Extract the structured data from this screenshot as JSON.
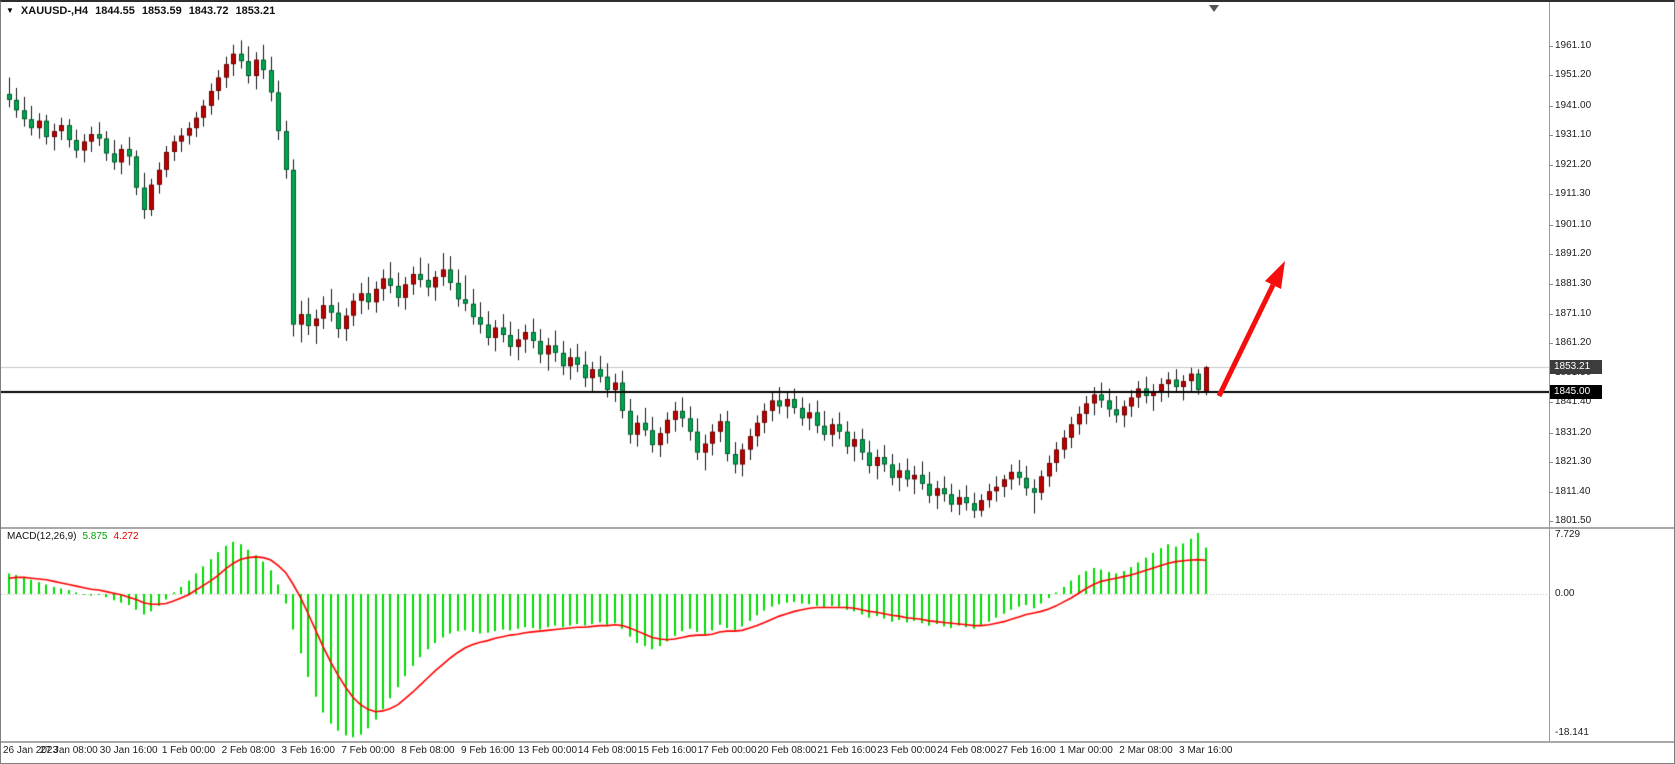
{
  "title": {
    "symbol": "XAUUSD-,H4",
    "open": "1844.55",
    "high": "1853.59",
    "low": "1843.72",
    "close": "1853.21"
  },
  "markers": {
    "bid_label": "1853.21",
    "hline_label": "1845.00"
  },
  "macd": {
    "label": "MACD(12,26,9)",
    "scale_zero_label": "0.00"
  },
  "chart_data": {
    "type": "candlestick",
    "symbol": "XAUUSD",
    "timeframe": "H4",
    "bars_per_x_label": 8,
    "x_labels": [
      "26 Jan 2023",
      "27 Jan 08:00",
      "30 Jan 16:00",
      "1 Feb 00:00",
      "2 Feb 08:00",
      "3 Feb 16:00",
      "7 Feb 00:00",
      "8 Feb 08:00",
      "9 Feb 16:00",
      "13 Feb 00:00",
      "14 Feb 08:00",
      "15 Feb 16:00",
      "17 Feb 00:00",
      "20 Feb 08:00",
      "21 Feb 16:00",
      "23 Feb 00:00",
      "24 Feb 08:00",
      "27 Feb 16:00",
      "1 Mar 00:00",
      "2 Mar 08:00",
      "3 Mar 16:00"
    ],
    "y_axis_labels": [
      "1961.10",
      "1951.20",
      "1941.00",
      "1931.10",
      "1921.20",
      "1911.30",
      "1901.10",
      "1891.20",
      "1881.30",
      "1871.10",
      "1861.20",
      "1851.30",
      "1841.40",
      "1831.20",
      "1821.30",
      "1811.40",
      "1801.50"
    ],
    "horizontal_line": 1845.0,
    "bid_price": 1853.21,
    "arrow_annotation": "thick red arrow pointing up-right from the last candle toward ~1890",
    "ohlc": [
      [
        1945.0,
        1950.5,
        1940.5,
        1943.0
      ],
      [
        1943.0,
        1947.0,
        1937.0,
        1939.5
      ],
      [
        1939.5,
        1944.0,
        1934.0,
        1936.5
      ],
      [
        1936.5,
        1941.0,
        1931.0,
        1933.5
      ],
      [
        1933.5,
        1938.5,
        1930.0,
        1936.0
      ],
      [
        1936.0,
        1938.0,
        1928.0,
        1930.5
      ],
      [
        1930.5,
        1935.0,
        1926.0,
        1932.5
      ],
      [
        1932.5,
        1937.0,
        1929.5,
        1934.5
      ],
      [
        1934.5,
        1936.5,
        1927.0,
        1929.5
      ],
      [
        1929.5,
        1933.0,
        1923.5,
        1926.0
      ],
      [
        1926.0,
        1931.5,
        1922.0,
        1929.0
      ],
      [
        1929.0,
        1934.0,
        1925.5,
        1931.5
      ],
      [
        1931.5,
        1935.5,
        1927.5,
        1930.0
      ],
      [
        1930.0,
        1932.5,
        1922.5,
        1925.0
      ],
      [
        1925.0,
        1929.5,
        1919.5,
        1922.0
      ],
      [
        1922.0,
        1928.0,
        1918.0,
        1926.5
      ],
      [
        1926.5,
        1930.5,
        1921.0,
        1924.0
      ],
      [
        1924.0,
        1926.0,
        1911.0,
        1913.5
      ],
      [
        1913.5,
        1918.5,
        1903.0,
        1906.0
      ],
      [
        1906.0,
        1916.5,
        1904.0,
        1914.5
      ],
      [
        1914.5,
        1922.0,
        1911.5,
        1919.5
      ],
      [
        1919.5,
        1927.5,
        1917.0,
        1925.5
      ],
      [
        1925.5,
        1931.0,
        1922.5,
        1929.0
      ],
      [
        1929.0,
        1933.5,
        1925.5,
        1931.0
      ],
      [
        1931.0,
        1935.5,
        1928.0,
        1933.5
      ],
      [
        1933.5,
        1939.0,
        1930.5,
        1937.0
      ],
      [
        1937.0,
        1943.0,
        1934.0,
        1941.0
      ],
      [
        1941.0,
        1948.5,
        1938.0,
        1946.0
      ],
      [
        1946.0,
        1953.0,
        1943.0,
        1950.5
      ],
      [
        1950.5,
        1957.5,
        1947.0,
        1955.0
      ],
      [
        1955.0,
        1961.5,
        1951.0,
        1958.5
      ],
      [
        1958.5,
        1963.0,
        1953.5,
        1956.0
      ],
      [
        1956.0,
        1961.0,
        1948.5,
        1951.0
      ],
      [
        1951.0,
        1959.0,
        1946.5,
        1956.5
      ],
      [
        1956.5,
        1961.5,
        1950.0,
        1953.0
      ],
      [
        1953.0,
        1957.5,
        1942.5,
        1945.5
      ],
      [
        1945.5,
        1949.5,
        1929.5,
        1932.5
      ],
      [
        1932.5,
        1936.0,
        1916.5,
        1919.5
      ],
      [
        1919.5,
        1923.0,
        1863.5,
        1867.5
      ],
      [
        1867.5,
        1875.5,
        1861.5,
        1871.0
      ],
      [
        1871.0,
        1876.5,
        1864.0,
        1867.0
      ],
      [
        1867.0,
        1872.5,
        1861.0,
        1869.5
      ],
      [
        1869.5,
        1877.0,
        1866.0,
        1874.0
      ],
      [
        1874.0,
        1879.5,
        1868.5,
        1871.5
      ],
      [
        1871.5,
        1875.0,
        1863.0,
        1866.0
      ],
      [
        1866.0,
        1873.0,
        1862.0,
        1870.5
      ],
      [
        1870.5,
        1878.0,
        1867.0,
        1875.5
      ],
      [
        1875.5,
        1881.5,
        1871.0,
        1878.0
      ],
      [
        1878.0,
        1883.5,
        1872.5,
        1875.0
      ],
      [
        1875.0,
        1882.0,
        1871.5,
        1879.5
      ],
      [
        1879.5,
        1886.0,
        1875.5,
        1883.0
      ],
      [
        1883.0,
        1888.5,
        1878.0,
        1880.5
      ],
      [
        1880.5,
        1885.0,
        1873.5,
        1876.5
      ],
      [
        1876.5,
        1883.5,
        1872.5,
        1881.0
      ],
      [
        1881.0,
        1887.0,
        1877.5,
        1884.5
      ],
      [
        1884.5,
        1890.0,
        1880.0,
        1882.5
      ],
      [
        1882.5,
        1888.0,
        1877.0,
        1880.0
      ],
      [
        1880.0,
        1885.5,
        1875.5,
        1883.5
      ],
      [
        1883.5,
        1891.5,
        1880.5,
        1886.0
      ],
      [
        1886.0,
        1890.5,
        1879.0,
        1881.5
      ],
      [
        1881.5,
        1886.0,
        1873.5,
        1876.0
      ],
      [
        1876.0,
        1884.0,
        1872.0,
        1874.5
      ],
      [
        1874.5,
        1879.5,
        1867.5,
        1870.0
      ],
      [
        1870.0,
        1875.0,
        1864.5,
        1867.5
      ],
      [
        1867.5,
        1872.0,
        1860.5,
        1863.0
      ],
      [
        1863.0,
        1869.0,
        1858.5,
        1866.5
      ],
      [
        1866.5,
        1871.0,
        1861.5,
        1864.0
      ],
      [
        1864.0,
        1868.5,
        1857.0,
        1860.0
      ],
      [
        1860.0,
        1866.0,
        1855.5,
        1862.5
      ],
      [
        1862.5,
        1867.5,
        1858.0,
        1865.0
      ],
      [
        1865.0,
        1869.5,
        1859.5,
        1862.0
      ],
      [
        1862.0,
        1866.0,
        1854.5,
        1857.5
      ],
      [
        1857.5,
        1863.0,
        1852.0,
        1860.5
      ],
      [
        1860.5,
        1865.5,
        1855.0,
        1858.0
      ],
      [
        1858.0,
        1862.0,
        1850.5,
        1853.5
      ],
      [
        1853.5,
        1859.5,
        1849.0,
        1856.5
      ],
      [
        1856.5,
        1861.0,
        1851.5,
        1854.0
      ],
      [
        1854.0,
        1858.5,
        1846.5,
        1849.5
      ],
      [
        1849.5,
        1855.0,
        1845.0,
        1852.5
      ],
      [
        1852.5,
        1857.0,
        1848.0,
        1850.0
      ],
      [
        1850.0,
        1854.5,
        1843.0,
        1845.5
      ],
      [
        1845.5,
        1851.0,
        1841.5,
        1848.0
      ],
      [
        1848.0,
        1852.0,
        1836.0,
        1838.5
      ],
      [
        1838.5,
        1842.5,
        1827.5,
        1830.5
      ],
      [
        1830.5,
        1837.0,
        1826.5,
        1834.5
      ],
      [
        1834.5,
        1839.5,
        1830.0,
        1832.0
      ],
      [
        1832.0,
        1836.5,
        1824.5,
        1827.0
      ],
      [
        1827.0,
        1833.0,
        1823.0,
        1831.0
      ],
      [
        1831.0,
        1838.0,
        1827.5,
        1835.5
      ],
      [
        1835.5,
        1841.5,
        1831.5,
        1838.5
      ],
      [
        1838.5,
        1843.0,
        1833.0,
        1836.0
      ],
      [
        1836.0,
        1840.0,
        1828.5,
        1831.5
      ],
      [
        1831.5,
        1836.0,
        1822.0,
        1824.5
      ],
      [
        1824.5,
        1830.5,
        1818.5,
        1827.5
      ],
      [
        1827.5,
        1834.0,
        1823.5,
        1831.5
      ],
      [
        1831.5,
        1837.5,
        1828.0,
        1835.0
      ],
      [
        1835.0,
        1838.5,
        1821.5,
        1824.0
      ],
      [
        1824.0,
        1828.0,
        1817.5,
        1820.5
      ],
      [
        1820.5,
        1827.5,
        1816.5,
        1825.5
      ],
      [
        1825.5,
        1832.5,
        1822.0,
        1830.0
      ],
      [
        1830.0,
        1837.0,
        1826.5,
        1834.5
      ],
      [
        1834.5,
        1841.0,
        1831.0,
        1838.5
      ],
      [
        1838.5,
        1844.5,
        1835.0,
        1842.0
      ],
      [
        1842.0,
        1846.5,
        1837.5,
        1840.0
      ],
      [
        1840.0,
        1845.0,
        1836.0,
        1842.5
      ],
      [
        1842.5,
        1846.0,
        1837.5,
        1839.5
      ],
      [
        1839.5,
        1843.0,
        1833.5,
        1836.0
      ],
      [
        1836.0,
        1841.0,
        1832.0,
        1838.0
      ],
      [
        1838.0,
        1842.0,
        1831.0,
        1833.5
      ],
      [
        1833.5,
        1838.5,
        1828.5,
        1830.5
      ],
      [
        1830.5,
        1836.0,
        1826.5,
        1834.0
      ],
      [
        1834.0,
        1838.0,
        1829.0,
        1831.5
      ],
      [
        1831.5,
        1835.0,
        1824.0,
        1826.5
      ],
      [
        1826.5,
        1831.5,
        1821.5,
        1829.0
      ],
      [
        1829.0,
        1832.5,
        1822.0,
        1824.5
      ],
      [
        1824.5,
        1828.5,
        1817.5,
        1820.0
      ],
      [
        1820.0,
        1825.5,
        1815.5,
        1823.0
      ],
      [
        1823.0,
        1827.0,
        1818.0,
        1820.5
      ],
      [
        1820.5,
        1824.0,
        1813.5,
        1816.0
      ],
      [
        1816.0,
        1821.0,
        1811.5,
        1818.5
      ],
      [
        1818.5,
        1822.5,
        1813.0,
        1815.5
      ],
      [
        1815.5,
        1820.0,
        1810.5,
        1817.0
      ],
      [
        1817.0,
        1821.5,
        1812.0,
        1814.0
      ],
      [
        1814.0,
        1818.0,
        1807.5,
        1810.0
      ],
      [
        1810.0,
        1815.0,
        1805.5,
        1812.5
      ],
      [
        1812.5,
        1816.5,
        1808.0,
        1810.5
      ],
      [
        1810.5,
        1814.0,
        1804.5,
        1807.0
      ],
      [
        1807.0,
        1812.0,
        1803.5,
        1809.5
      ],
      [
        1809.5,
        1813.5,
        1805.0,
        1807.5
      ],
      [
        1807.5,
        1811.0,
        1802.5,
        1805.0
      ],
      [
        1805.0,
        1810.5,
        1803.0,
        1808.5
      ],
      [
        1808.5,
        1814.0,
        1806.0,
        1811.5
      ],
      [
        1811.5,
        1816.5,
        1808.0,
        1813.0
      ],
      [
        1813.0,
        1817.0,
        1809.5,
        1815.5
      ],
      [
        1815.5,
        1820.5,
        1812.0,
        1818.0
      ],
      [
        1818.0,
        1822.0,
        1813.5,
        1816.0
      ],
      [
        1816.0,
        1820.0,
        1810.0,
        1812.5
      ],
      [
        1812.5,
        1815.5,
        1804.0,
        1811.0
      ],
      [
        1811.0,
        1818.5,
        1808.5,
        1816.5
      ],
      [
        1816.5,
        1823.5,
        1813.0,
        1821.0
      ],
      [
        1821.0,
        1828.0,
        1818.0,
        1825.5
      ],
      [
        1825.5,
        1832.0,
        1822.5,
        1829.5
      ],
      [
        1829.5,
        1836.5,
        1826.0,
        1834.0
      ],
      [
        1834.0,
        1840.0,
        1830.5,
        1837.5
      ],
      [
        1837.5,
        1843.5,
        1834.0,
        1841.0
      ],
      [
        1841.0,
        1846.5,
        1837.0,
        1844.0
      ],
      [
        1844.0,
        1848.0,
        1839.5,
        1842.0
      ],
      [
        1842.0,
        1846.0,
        1836.5,
        1839.0
      ],
      [
        1839.0,
        1843.5,
        1834.5,
        1837.0
      ],
      [
        1837.0,
        1842.0,
        1833.0,
        1840.0
      ],
      [
        1840.0,
        1845.5,
        1836.5,
        1843.0
      ],
      [
        1843.0,
        1848.5,
        1839.5,
        1846.0
      ],
      [
        1846.0,
        1850.0,
        1841.0,
        1843.5
      ],
      [
        1843.5,
        1847.5,
        1838.5,
        1845.0
      ],
      [
        1845.0,
        1849.5,
        1841.5,
        1847.5
      ],
      [
        1847.5,
        1851.5,
        1843.0,
        1849.0
      ],
      [
        1849.0,
        1852.5,
        1844.5,
        1846.5
      ],
      [
        1846.5,
        1850.5,
        1842.0,
        1848.5
      ],
      [
        1848.5,
        1853.0,
        1845.0,
        1851.0
      ],
      [
        1851.0,
        1852.5,
        1844.0,
        1845.5
      ],
      [
        1844.55,
        1853.59,
        1843.72,
        1853.21
      ]
    ],
    "indicator": {
      "name": "MACD",
      "params": [
        12,
        26,
        9
      ],
      "current_main": 5.875,
      "current_signal": 4.272,
      "scale_max": 7.729,
      "scale_min": -18.141,
      "histogram": [
        2.6,
        2.4,
        2.1,
        1.8,
        1.5,
        1.2,
        0.9,
        0.7,
        0.5,
        0.2,
        -0.1,
        -0.2,
        -0.1,
        -0.4,
        -0.8,
        -1.1,
        -1.4,
        -2.0,
        -2.6,
        -2.2,
        -1.5,
        -0.7,
        0.2,
        0.9,
        1.7,
        2.6,
        3.5,
        4.4,
        5.3,
        6.1,
        6.6,
        6.3,
        5.6,
        4.9,
        4.1,
        3.0,
        1.2,
        -1.2,
        -4.5,
        -7.5,
        -10.5,
        -13.0,
        -15.0,
        -16.4,
        -17.3,
        -17.9,
        -18.141,
        -17.8,
        -17.0,
        -15.9,
        -14.6,
        -13.2,
        -11.8,
        -10.4,
        -9.1,
        -8.0,
        -7.0,
        -6.2,
        -5.5,
        -5.0,
        -4.7,
        -4.6,
        -4.8,
        -5.0,
        -4.9,
        -4.7,
        -4.5,
        -4.6,
        -4.4,
        -4.2,
        -4.3,
        -4.5,
        -4.2,
        -4.0,
        -4.2,
        -4.0,
        -3.8,
        -4.0,
        -3.8,
        -3.6,
        -3.9,
        -3.7,
        -4.4,
        -5.4,
        -6.2,
        -6.6,
        -7.0,
        -6.6,
        -6.0,
        -5.3,
        -4.7,
        -4.4,
        -4.8,
        -5.1,
        -4.6,
        -3.9,
        -4.3,
        -4.6,
        -4.1,
        -3.4,
        -2.7,
        -2.1,
        -1.6,
        -1.3,
        -1.1,
        -1.0,
        -1.2,
        -1.3,
        -1.5,
        -1.7,
        -1.5,
        -1.6,
        -2.0,
        -2.2,
        -2.6,
        -3.0,
        -2.8,
        -3.1,
        -3.5,
        -3.3,
        -3.6,
        -3.4,
        -3.7,
        -4.0,
        -3.8,
        -4.1,
        -4.3,
        -4.0,
        -4.2,
        -4.4,
        -4.0,
        -3.5,
        -3.0,
        -2.5,
        -2.0,
        -1.6,
        -1.4,
        -1.8,
        -1.2,
        -0.5,
        0.2,
        0.9,
        1.7,
        2.4,
        2.9,
        3.3,
        3.1,
        2.8,
        2.6,
        2.9,
        3.4,
        4.0,
        4.6,
        5.2,
        5.8,
        6.3,
        6.0,
        6.4,
        7.0,
        7.729,
        5.875
      ],
      "signal": [
        2.0,
        2.1,
        2.1,
        2.0,
        1.9,
        1.8,
        1.6,
        1.4,
        1.2,
        1.0,
        0.8,
        0.6,
        0.5,
        0.3,
        0.1,
        -0.1,
        -0.4,
        -0.7,
        -1.1,
        -1.3,
        -1.3,
        -1.2,
        -0.9,
        -0.5,
        -0.1,
        0.5,
        1.1,
        1.7,
        2.4,
        3.2,
        3.9,
        4.4,
        4.6,
        4.7,
        4.6,
        4.3,
        3.6,
        2.7,
        1.2,
        -0.5,
        -2.5,
        -4.6,
        -6.7,
        -8.6,
        -10.3,
        -11.8,
        -13.1,
        -14.0,
        -14.6,
        -14.9,
        -14.8,
        -14.5,
        -14.0,
        -13.2,
        -12.4,
        -11.5,
        -10.6,
        -9.7,
        -8.9,
        -8.1,
        -7.4,
        -6.8,
        -6.4,
        -6.1,
        -5.9,
        -5.6,
        -5.4,
        -5.2,
        -5.1,
        -4.9,
        -4.8,
        -4.7,
        -4.6,
        -4.5,
        -4.4,
        -4.3,
        -4.2,
        -4.2,
        -4.1,
        -4.0,
        -4.0,
        -3.9,
        -4.0,
        -4.3,
        -4.7,
        -5.1,
        -5.5,
        -5.7,
        -5.8,
        -5.7,
        -5.5,
        -5.3,
        -5.2,
        -5.2,
        -5.1,
        -4.8,
        -4.7,
        -4.7,
        -4.6,
        -4.3,
        -4.0,
        -3.6,
        -3.2,
        -2.8,
        -2.5,
        -2.2,
        -2.0,
        -1.8,
        -1.7,
        -1.7,
        -1.7,
        -1.7,
        -1.7,
        -1.8,
        -2.0,
        -2.2,
        -2.3,
        -2.5,
        -2.7,
        -2.8,
        -3.0,
        -3.1,
        -3.2,
        -3.4,
        -3.5,
        -3.6,
        -3.7,
        -3.8,
        -3.9,
        -4.0,
        -4.0,
        -3.9,
        -3.7,
        -3.5,
        -3.2,
        -2.9,
        -2.6,
        -2.4,
        -2.2,
        -1.9,
        -1.5,
        -1.0,
        -0.5,
        0.1,
        0.7,
        1.2,
        1.6,
        1.8,
        2.0,
        2.2,
        2.4,
        2.7,
        3.0,
        3.3,
        3.6,
        3.9,
        4.1,
        4.2,
        4.3,
        4.35,
        4.272
      ]
    },
    "colors": {
      "bull_candle": "#c00000",
      "bear_candle": "#00a651",
      "wick": "#141414",
      "macd_histogram": "#00dd00",
      "macd_signal": "#ff0000",
      "hline": "#000000",
      "bid_line": "#c6c6c6",
      "arrow": "#f60d0d"
    }
  }
}
